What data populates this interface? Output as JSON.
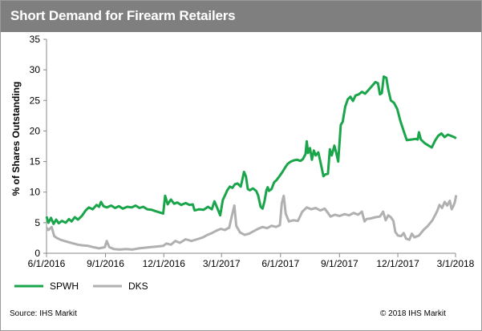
{
  "title": "Short Demand for Firearm Retailers",
  "source": "Source: IHS Markit",
  "copyright": "© 2018 IHS Markit",
  "colors": {
    "spwh": "#1aa54b",
    "dks": "#b0b0b0",
    "axis": "#888888"
  },
  "chart_data": {
    "type": "line",
    "title": "Short Demand for Firearm Retailers",
    "xlabel": "",
    "ylabel": "% of Shares Outstanding",
    "ylim": [
      0,
      35
    ],
    "yticks": [
      0,
      5,
      10,
      15,
      20,
      25,
      30,
      35
    ],
    "xlim": [
      "2016-06-01",
      "2018-03-01"
    ],
    "xticks": [
      "2016-06-01",
      "2016-09-01",
      "2016-12-01",
      "2017-03-01",
      "2017-06-01",
      "2017-09-01",
      "2017-12-01",
      "2018-03-01"
    ],
    "xtick_labels": [
      "6/1/2016",
      "9/1/2016",
      "12/1/2016",
      "3/1/2017",
      "6/1/2017",
      "9/1/2017",
      "12/1/2017",
      "3/1/2018"
    ],
    "grid": false,
    "legend": "bottom-left",
    "series": [
      {
        "name": "SPWH",
        "color": "#1aa54b",
        "points": [
          [
            "2016-06-01",
            6.0
          ],
          [
            "2016-06-04",
            5.0
          ],
          [
            "2016-06-08",
            5.8
          ],
          [
            "2016-06-12",
            4.8
          ],
          [
            "2016-06-16",
            5.5
          ],
          [
            "2016-06-20",
            4.9
          ],
          [
            "2016-06-25",
            5.3
          ],
          [
            "2016-07-01",
            5.0
          ],
          [
            "2016-07-06",
            5.6
          ],
          [
            "2016-07-10",
            5.2
          ],
          [
            "2016-07-15",
            5.9
          ],
          [
            "2016-07-20",
            5.5
          ],
          [
            "2016-07-26",
            6.1
          ],
          [
            "2016-08-01",
            7.0
          ],
          [
            "2016-08-06",
            7.5
          ],
          [
            "2016-08-12",
            7.2
          ],
          [
            "2016-08-18",
            7.9
          ],
          [
            "2016-08-22",
            7.6
          ],
          [
            "2016-08-25",
            8.4
          ],
          [
            "2016-08-29",
            7.7
          ],
          [
            "2016-09-03",
            7.5
          ],
          [
            "2016-09-10",
            7.8
          ],
          [
            "2016-09-16",
            7.4
          ],
          [
            "2016-09-22",
            7.7
          ],
          [
            "2016-09-28",
            7.3
          ],
          [
            "2016-10-05",
            7.6
          ],
          [
            "2016-10-12",
            7.5
          ],
          [
            "2016-10-18",
            7.8
          ],
          [
            "2016-10-24",
            7.4
          ],
          [
            "2016-10-30",
            7.6
          ],
          [
            "2016-11-05",
            7.2
          ],
          [
            "2016-11-12",
            7.1
          ],
          [
            "2016-11-18",
            6.9
          ],
          [
            "2016-11-24",
            6.7
          ],
          [
            "2016-11-30",
            6.5
          ],
          [
            "2016-12-03",
            9.4
          ],
          [
            "2016-12-07",
            8.0
          ],
          [
            "2016-12-12",
            8.8
          ],
          [
            "2016-12-17",
            8.1
          ],
          [
            "2016-12-22",
            8.3
          ],
          [
            "2016-12-28",
            7.9
          ],
          [
            "2017-01-04",
            8.2
          ],
          [
            "2017-01-10",
            7.9
          ],
          [
            "2017-01-15",
            8.0
          ],
          [
            "2017-01-18",
            7.0
          ],
          [
            "2017-01-25",
            7.2
          ],
          [
            "2017-02-01",
            7.1
          ],
          [
            "2017-02-08",
            7.6
          ],
          [
            "2017-02-14",
            7.2
          ],
          [
            "2017-02-18",
            8.5
          ],
          [
            "2017-02-22",
            7.5
          ],
          [
            "2017-02-27",
            6.2
          ],
          [
            "2017-03-03",
            8.7
          ],
          [
            "2017-03-07",
            9.6
          ],
          [
            "2017-03-10",
            10.3
          ],
          [
            "2017-03-14",
            10.9
          ],
          [
            "2017-03-18",
            10.7
          ],
          [
            "2017-03-22",
            11.3
          ],
          [
            "2017-03-26",
            11.4
          ],
          [
            "2017-03-31",
            10.9
          ],
          [
            "2017-04-03",
            12.3
          ],
          [
            "2017-04-05",
            13.3
          ],
          [
            "2017-04-08",
            12.6
          ],
          [
            "2017-04-11",
            10.5
          ],
          [
            "2017-04-14",
            10.3
          ],
          [
            "2017-04-19",
            10.6
          ],
          [
            "2017-04-24",
            10.2
          ],
          [
            "2017-04-27",
            9.5
          ],
          [
            "2017-05-01",
            7.6
          ],
          [
            "2017-05-04",
            7.3
          ],
          [
            "2017-05-07",
            8.5
          ],
          [
            "2017-05-10",
            10.3
          ],
          [
            "2017-05-12",
            10.8
          ],
          [
            "2017-05-14",
            10.2
          ],
          [
            "2017-05-18",
            10.5
          ],
          [
            "2017-05-22",
            11.6
          ],
          [
            "2017-05-26",
            12.0
          ],
          [
            "2017-05-31",
            12.7
          ],
          [
            "2017-06-04",
            13.3
          ],
          [
            "2017-06-08",
            14.0
          ],
          [
            "2017-06-12",
            14.6
          ],
          [
            "2017-06-17",
            15.0
          ],
          [
            "2017-06-22",
            15.2
          ],
          [
            "2017-06-27",
            15.3
          ],
          [
            "2017-07-02",
            15.1
          ],
          [
            "2017-07-06",
            15.4
          ],
          [
            "2017-07-10",
            16.2
          ],
          [
            "2017-07-12",
            18.3
          ],
          [
            "2017-07-14",
            16.4
          ],
          [
            "2017-07-17",
            17.2
          ],
          [
            "2017-07-20",
            15.3
          ],
          [
            "2017-07-23",
            16.8
          ],
          [
            "2017-07-26",
            16.0
          ],
          [
            "2017-07-30",
            16.5
          ],
          [
            "2017-08-03",
            14.6
          ],
          [
            "2017-08-07",
            12.6
          ],
          [
            "2017-08-10",
            12.9
          ],
          [
            "2017-08-14",
            13.0
          ],
          [
            "2017-08-17",
            17.0
          ],
          [
            "2017-08-20",
            16.0
          ],
          [
            "2017-08-24",
            17.6
          ],
          [
            "2017-08-27",
            16.4
          ],
          [
            "2017-08-30",
            15.0
          ],
          [
            "2017-09-03",
            21.0
          ],
          [
            "2017-09-06",
            21.5
          ],
          [
            "2017-09-10",
            24.0
          ],
          [
            "2017-09-14",
            25.2
          ],
          [
            "2017-09-18",
            25.6
          ],
          [
            "2017-09-22",
            24.9
          ],
          [
            "2017-09-26",
            25.8
          ],
          [
            "2017-10-01",
            26.0
          ],
          [
            "2017-10-06",
            26.4
          ],
          [
            "2017-10-11",
            26.1
          ],
          [
            "2017-10-17",
            26.8
          ],
          [
            "2017-10-22",
            27.4
          ],
          [
            "2017-10-27",
            28.0
          ],
          [
            "2017-10-31",
            27.8
          ],
          [
            "2017-11-03",
            26.0
          ],
          [
            "2017-11-06",
            26.2
          ],
          [
            "2017-11-09",
            28.9
          ],
          [
            "2017-11-13",
            28.7
          ],
          [
            "2017-11-16",
            26.8
          ],
          [
            "2017-11-20",
            25.0
          ],
          [
            "2017-11-25",
            24.6
          ],
          [
            "2017-11-30",
            23.6
          ],
          [
            "2017-12-05",
            21.6
          ],
          [
            "2017-12-10",
            20.0
          ],
          [
            "2017-12-15",
            18.5
          ],
          [
            "2017-12-22",
            18.6
          ],
          [
            "2017-12-29",
            18.7
          ],
          [
            "2018-01-01",
            18.6
          ],
          [
            "2018-01-03",
            19.8
          ],
          [
            "2018-01-06",
            18.6
          ],
          [
            "2018-01-12",
            18.0
          ],
          [
            "2018-01-18",
            17.6
          ],
          [
            "2018-01-23",
            17.3
          ],
          [
            "2018-01-28",
            18.4
          ],
          [
            "2018-02-02",
            19.2
          ],
          [
            "2018-02-07",
            19.6
          ],
          [
            "2018-02-12",
            19.0
          ],
          [
            "2018-02-17",
            19.4
          ],
          [
            "2018-02-22",
            19.2
          ],
          [
            "2018-02-27",
            19.0
          ],
          [
            "2018-03-02",
            18.8
          ]
        ]
      },
      {
        "name": "DKS",
        "color": "#b0b0b0",
        "points": [
          [
            "2016-06-01",
            4.2
          ],
          [
            "2016-06-04",
            3.8
          ],
          [
            "2016-06-09",
            4.3
          ],
          [
            "2016-06-13",
            2.8
          ],
          [
            "2016-06-17",
            2.5
          ],
          [
            "2016-06-23",
            2.2
          ],
          [
            "2016-06-29",
            2.0
          ],
          [
            "2016-07-06",
            1.8
          ],
          [
            "2016-07-13",
            1.6
          ],
          [
            "2016-07-20",
            1.4
          ],
          [
            "2016-07-27",
            1.3
          ],
          [
            "2016-08-05",
            1.2
          ],
          [
            "2016-08-13",
            1.0
          ],
          [
            "2016-08-22",
            0.8
          ],
          [
            "2016-08-31",
            1.0
          ],
          [
            "2016-09-03",
            2.0
          ],
          [
            "2016-09-07",
            1.0
          ],
          [
            "2016-09-14",
            0.7
          ],
          [
            "2016-09-23",
            0.6
          ],
          [
            "2016-10-03",
            0.7
          ],
          [
            "2016-10-13",
            0.6
          ],
          [
            "2016-10-23",
            0.8
          ],
          [
            "2016-11-01",
            0.9
          ],
          [
            "2016-11-10",
            1.0
          ],
          [
            "2016-11-20",
            1.1
          ],
          [
            "2016-11-30",
            1.2
          ],
          [
            "2016-12-05",
            1.6
          ],
          [
            "2016-12-12",
            1.4
          ],
          [
            "2016-12-19",
            2.0
          ],
          [
            "2016-12-26",
            1.7
          ],
          [
            "2017-01-04",
            2.3
          ],
          [
            "2017-01-13",
            2.0
          ],
          [
            "2017-01-22",
            2.3
          ],
          [
            "2017-01-31",
            2.6
          ],
          [
            "2017-02-07",
            3.0
          ],
          [
            "2017-02-14",
            3.3
          ],
          [
            "2017-02-21",
            3.7
          ],
          [
            "2017-02-28",
            4.0
          ],
          [
            "2017-03-06",
            3.8
          ],
          [
            "2017-03-13",
            4.2
          ],
          [
            "2017-03-18",
            6.5
          ],
          [
            "2017-03-21",
            7.8
          ],
          [
            "2017-03-24",
            4.5
          ],
          [
            "2017-03-30",
            3.4
          ],
          [
            "2017-04-06",
            3.0
          ],
          [
            "2017-04-13",
            3.2
          ],
          [
            "2017-04-20",
            3.6
          ],
          [
            "2017-04-27",
            4.0
          ],
          [
            "2017-05-04",
            4.3
          ],
          [
            "2017-05-11",
            4.1
          ],
          [
            "2017-05-18",
            4.5
          ],
          [
            "2017-05-25",
            4.3
          ],
          [
            "2017-05-31",
            4.6
          ],
          [
            "2017-06-03",
            8.2
          ],
          [
            "2017-06-06",
            9.4
          ],
          [
            "2017-06-09",
            6.5
          ],
          [
            "2017-06-14",
            5.2
          ],
          [
            "2017-06-21",
            5.4
          ],
          [
            "2017-06-28",
            5.3
          ],
          [
            "2017-07-05",
            6.8
          ],
          [
            "2017-07-12",
            7.5
          ],
          [
            "2017-07-19",
            7.2
          ],
          [
            "2017-07-26",
            7.4
          ],
          [
            "2017-08-02",
            7.0
          ],
          [
            "2017-08-09",
            7.3
          ],
          [
            "2017-08-14",
            6.6
          ],
          [
            "2017-08-18",
            6.0
          ],
          [
            "2017-08-25",
            6.3
          ],
          [
            "2017-09-01",
            6.1
          ],
          [
            "2017-09-09",
            6.4
          ],
          [
            "2017-09-16",
            6.2
          ],
          [
            "2017-09-23",
            6.6
          ],
          [
            "2017-09-30",
            6.3
          ],
          [
            "2017-10-06",
            6.8
          ],
          [
            "2017-10-10",
            5.2
          ],
          [
            "2017-10-13",
            5.6
          ],
          [
            "2017-10-20",
            5.7
          ],
          [
            "2017-10-27",
            5.9
          ],
          [
            "2017-11-03",
            6.0
          ],
          [
            "2017-11-08",
            6.8
          ],
          [
            "2017-11-12",
            5.4
          ],
          [
            "2017-11-16",
            6.2
          ],
          [
            "2017-11-20",
            5.9
          ],
          [
            "2017-11-24",
            5.3
          ],
          [
            "2017-11-27",
            3.5
          ],
          [
            "2017-12-01",
            2.9
          ],
          [
            "2017-12-06",
            2.8
          ],
          [
            "2017-12-10",
            3.3
          ],
          [
            "2017-12-14",
            2.4
          ],
          [
            "2017-12-19",
            2.2
          ],
          [
            "2017-12-23",
            3.2
          ],
          [
            "2017-12-27",
            2.6
          ],
          [
            "2018-01-03",
            2.9
          ],
          [
            "2018-01-10",
            3.8
          ],
          [
            "2018-01-17",
            4.5
          ],
          [
            "2018-01-24",
            5.4
          ],
          [
            "2018-01-31",
            6.8
          ],
          [
            "2018-02-04",
            7.9
          ],
          [
            "2018-02-08",
            7.4
          ],
          [
            "2018-02-12",
            8.4
          ],
          [
            "2018-02-16",
            7.8
          ],
          [
            "2018-02-20",
            8.6
          ],
          [
            "2018-02-23",
            7.2
          ],
          [
            "2018-02-26",
            7.8
          ],
          [
            "2018-02-28",
            8.4
          ],
          [
            "2018-03-02",
            9.5
          ]
        ]
      }
    ]
  }
}
